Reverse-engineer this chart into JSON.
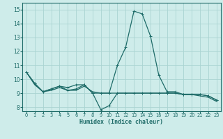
{
  "xlabel": "Humidex (Indice chaleur)",
  "xlim": [
    -0.5,
    23.5
  ],
  "ylim": [
    7.7,
    15.5
  ],
  "yticks": [
    8,
    9,
    10,
    11,
    12,
    13,
    14,
    15
  ],
  "xticks": [
    0,
    1,
    2,
    3,
    4,
    5,
    6,
    7,
    8,
    9,
    10,
    11,
    12,
    13,
    14,
    15,
    16,
    17,
    18,
    19,
    20,
    21,
    22,
    23
  ],
  "bg_color": "#ceecea",
  "grid_color": "#aad4d2",
  "line_color": "#1e6b68",
  "series": [
    [
      10.5,
      9.7,
      9.1,
      9.3,
      9.5,
      9.4,
      9.6,
      9.6,
      9.0,
      9.0,
      9.0,
      11.0,
      12.3,
      14.9,
      14.7,
      13.1,
      10.3,
      9.1,
      9.1,
      8.9,
      8.9,
      8.9,
      8.8,
      8.5
    ],
    [
      10.5,
      9.7,
      9.1,
      9.3,
      9.5,
      9.2,
      9.3,
      9.6,
      9.0,
      7.8,
      8.1,
      9.0,
      9.0,
      9.0,
      9.0,
      9.0,
      9.0,
      9.0,
      9.0,
      8.9,
      8.9,
      8.9,
      8.8,
      8.5
    ],
    [
      10.5,
      9.6,
      9.1,
      9.2,
      9.4,
      9.2,
      9.2,
      9.5,
      9.1,
      9.0,
      9.0,
      9.0,
      9.0,
      9.0,
      9.0,
      9.0,
      9.0,
      9.0,
      9.0,
      8.9,
      8.9,
      8.8,
      8.7,
      8.4
    ]
  ]
}
